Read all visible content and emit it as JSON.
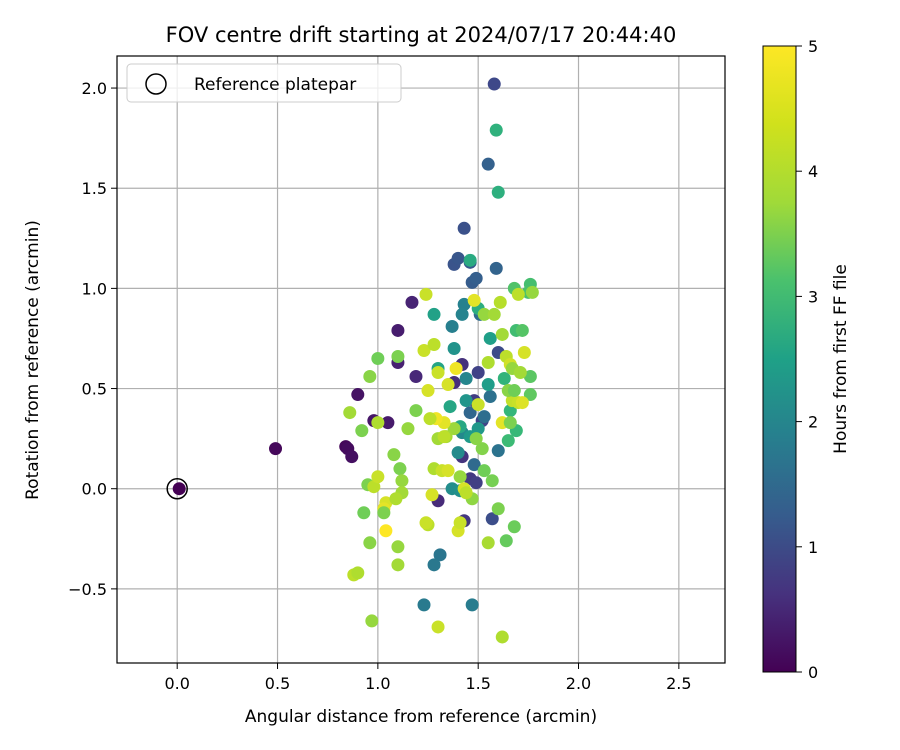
{
  "chart_data": {
    "type": "scatter",
    "title": "FOV centre drift starting at 2024/07/17 20:44:40",
    "xlabel": "Angular distance from reference (arcmin)",
    "ylabel": "Rotation from reference (arcmin)",
    "xlim": [
      -0.3,
      2.73
    ],
    "ylim": [
      -0.87,
      2.16
    ],
    "xticks": [
      0.0,
      0.5,
      1.0,
      1.5,
      2.0,
      2.5
    ],
    "xtick_labels": [
      "0.0",
      "0.5",
      "1.0",
      "1.5",
      "2.0",
      "2.5"
    ],
    "yticks": [
      -0.5,
      0.0,
      0.5,
      1.0,
      1.5,
      2.0
    ],
    "ytick_labels": [
      "−0.5",
      "0.0",
      "0.5",
      "1.0",
      "1.5",
      "2.0"
    ],
    "grid": true,
    "legend": {
      "placement": "upper-left",
      "entries": [
        "Reference platepar"
      ]
    },
    "reference_point": {
      "x": 0.0,
      "y": 0.0
    },
    "colorbar": {
      "label": "Hours from first FF file",
      "colormap": "viridis",
      "range": [
        0,
        5
      ],
      "ticks": [
        0,
        1,
        2,
        3,
        4,
        5
      ],
      "tick_labels": [
        "0",
        "1",
        "2",
        "3",
        "4",
        "5"
      ]
    },
    "points": [
      [
        0.01,
        0.0,
        0.0
      ],
      [
        0.49,
        0.2,
        0.1
      ],
      [
        0.84,
        0.21,
        0.1
      ],
      [
        0.85,
        0.2,
        0.15
      ],
      [
        0.87,
        0.16,
        0.2
      ],
      [
        0.9,
        0.47,
        0.25
      ],
      [
        0.98,
        0.34,
        0.3
      ],
      [
        1.05,
        0.33,
        0.35
      ],
      [
        1.1,
        0.79,
        0.4
      ],
      [
        1.1,
        0.63,
        0.45
      ],
      [
        1.17,
        0.93,
        0.5
      ],
      [
        1.19,
        0.56,
        0.55
      ],
      [
        1.3,
        -0.06,
        0.6
      ],
      [
        1.38,
        0.53,
        0.65
      ],
      [
        1.42,
        0.62,
        0.7
      ],
      [
        1.42,
        0.16,
        0.75
      ],
      [
        1.43,
        -0.16,
        0.8
      ],
      [
        1.46,
        0.05,
        0.85
      ],
      [
        1.48,
        0.44,
        0.9
      ],
      [
        1.49,
        0.03,
        0.95
      ],
      [
        1.5,
        0.58,
        1.0
      ],
      [
        1.52,
        0.34,
        1.05
      ],
      [
        1.58,
        2.02,
        1.1
      ],
      [
        1.6,
        0.68,
        1.15
      ],
      [
        1.57,
        -0.15,
        1.2
      ],
      [
        1.43,
        1.3,
        1.25
      ],
      [
        1.38,
        1.12,
        1.3
      ],
      [
        1.4,
        1.15,
        1.35
      ],
      [
        1.46,
        1.13,
        1.4
      ],
      [
        1.47,
        1.03,
        1.45
      ],
      [
        1.49,
        1.05,
        1.5
      ],
      [
        1.55,
        1.62,
        1.55
      ],
      [
        1.59,
        1.1,
        1.6
      ],
      [
        1.46,
        0.38,
        1.65
      ],
      [
        1.48,
        0.12,
        1.7
      ],
      [
        1.51,
        0.87,
        1.75
      ],
      [
        1.53,
        0.36,
        1.8
      ],
      [
        1.56,
        0.46,
        1.85
      ],
      [
        1.6,
        0.19,
        1.9
      ],
      [
        1.31,
        -0.33,
        1.95
      ],
      [
        1.28,
        -0.38,
        2.0
      ],
      [
        1.23,
        -0.58,
        2.05
      ],
      [
        1.47,
        -0.58,
        2.1
      ],
      [
        1.37,
        0.81,
        2.15
      ],
      [
        1.43,
        0.92,
        2.2
      ],
      [
        1.42,
        0.87,
        2.25
      ],
      [
        1.44,
        0.55,
        2.3
      ],
      [
        1.42,
        0.28,
        2.35
      ],
      [
        1.4,
        0.18,
        2.4
      ],
      [
        1.37,
        0.0,
        2.45
      ],
      [
        1.41,
        -0.01,
        2.5
      ],
      [
        1.38,
        0.7,
        2.55
      ],
      [
        1.44,
        0.44,
        2.6
      ],
      [
        1.5,
        0.3,
        2.65
      ],
      [
        1.46,
        0.26,
        2.7
      ],
      [
        1.55,
        0.52,
        2.75
      ],
      [
        1.56,
        0.75,
        2.8
      ],
      [
        1.28,
        0.87,
        2.85
      ],
      [
        1.3,
        0.6,
        2.9
      ],
      [
        1.36,
        0.41,
        2.95
      ],
      [
        1.41,
        0.31,
        3.0
      ],
      [
        1.46,
        1.14,
        3.05
      ],
      [
        1.5,
        0.9,
        3.1
      ],
      [
        1.6,
        1.48,
        3.15
      ],
      [
        1.59,
        1.79,
        3.2
      ],
      [
        1.63,
        0.55,
        3.25
      ],
      [
        1.66,
        0.39,
        3.3
      ],
      [
        1.69,
        0.29,
        3.35
      ],
      [
        1.65,
        0.24,
        3.4
      ],
      [
        1.69,
        0.79,
        3.45
      ],
      [
        1.76,
        1.02,
        3.5
      ],
      [
        1.75,
        0.98,
        3.55
      ],
      [
        1.68,
        1.0,
        3.6
      ],
      [
        1.72,
        0.79,
        3.65
      ],
      [
        1.76,
        0.56,
        3.7
      ],
      [
        1.76,
        0.47,
        3.75
      ],
      [
        1.64,
        -0.26,
        3.8
      ],
      [
        1.68,
        -0.19,
        3.85
      ],
      [
        1.53,
        0.09,
        3.9
      ],
      [
        1.57,
        0.04,
        3.95
      ],
      [
        1.6,
        -0.1,
        4.0
      ],
      [
        1.52,
        0.2,
        4.05
      ],
      [
        1.49,
        0.25,
        4.1
      ],
      [
        1.47,
        -0.05,
        4.15
      ],
      [
        1.41,
        0.06,
        4.2
      ],
      [
        1.38,
        0.3,
        4.25
      ],
      [
        1.34,
        0.26,
        4.3
      ],
      [
        1.55,
        -0.27,
        4.35
      ],
      [
        1.62,
        -0.74,
        4.4
      ],
      [
        1.61,
        0.93,
        4.45
      ],
      [
        1.64,
        0.66,
        4.5
      ],
      [
        1.67,
        0.44,
        4.55
      ],
      [
        1.7,
        0.43,
        4.6
      ],
      [
        1.66,
        0.62,
        4.65
      ],
      [
        1.73,
        0.68,
        4.7
      ],
      [
        1.72,
        0.43,
        4.75
      ],
      [
        1.62,
        0.33,
        4.8
      ],
      [
        1.0,
        0.65,
        3.9
      ],
      [
        1.1,
        0.66,
        4.0
      ],
      [
        0.96,
        0.56,
        4.1
      ],
      [
        1.19,
        0.39,
        4.0
      ],
      [
        1.15,
        0.3,
        4.2
      ],
      [
        0.86,
        0.38,
        4.3
      ],
      [
        0.92,
        0.29,
        4.0
      ],
      [
        1.0,
        0.33,
        4.4
      ],
      [
        0.95,
        0.02,
        4.0
      ],
      [
        0.98,
        0.01,
        4.5
      ],
      [
        1.0,
        0.06,
        4.6
      ],
      [
        1.04,
        -0.07,
        4.7
      ],
      [
        1.03,
        -0.1,
        4.8
      ],
      [
        1.08,
        0.17,
        4.1
      ],
      [
        1.11,
        0.1,
        4.0
      ],
      [
        1.12,
        0.04,
        4.2
      ],
      [
        1.12,
        -0.02,
        4.3
      ],
      [
        1.09,
        -0.05,
        4.4
      ],
      [
        0.93,
        -0.12,
        3.9
      ],
      [
        1.03,
        -0.12,
        4.0
      ],
      [
        0.96,
        -0.27,
        4.1
      ],
      [
        1.1,
        -0.29,
        4.2
      ],
      [
        1.1,
        -0.38,
        4.3
      ],
      [
        0.88,
        -0.43,
        4.5
      ],
      [
        0.9,
        -0.42,
        4.4
      ],
      [
        0.97,
        -0.66,
        4.2
      ],
      [
        1.04,
        -0.21,
        5.0
      ],
      [
        1.25,
        -0.18,
        4.5
      ],
      [
        1.24,
        -0.17,
        4.6
      ],
      [
        1.27,
        -0.03,
        4.7
      ],
      [
        1.3,
        0.25,
        4.3
      ],
      [
        1.28,
        0.1,
        4.4
      ],
      [
        1.33,
        0.26,
        4.5
      ],
      [
        1.32,
        0.09,
        4.6
      ],
      [
        1.35,
        0.09,
        4.7
      ],
      [
        1.33,
        0.33,
        4.8
      ],
      [
        1.29,
        0.35,
        4.9
      ],
      [
        1.26,
        0.35,
        4.5
      ],
      [
        1.23,
        0.69,
        4.6
      ],
      [
        1.25,
        0.49,
        4.7
      ],
      [
        1.28,
        0.72,
        4.5
      ],
      [
        1.3,
        0.58,
        4.6
      ],
      [
        1.35,
        0.52,
        4.7
      ],
      [
        1.39,
        0.6,
        4.9
      ],
      [
        1.24,
        0.97,
        4.6
      ],
      [
        1.3,
        -0.69,
        4.6
      ],
      [
        1.4,
        -0.21,
        4.7
      ],
      [
        1.41,
        -0.17,
        4.6
      ],
      [
        1.43,
        0.0,
        4.7
      ],
      [
        1.44,
        -0.02,
        4.5
      ],
      [
        1.48,
        0.94,
        4.8
      ],
      [
        1.5,
        0.42,
        4.6
      ],
      [
        1.53,
        0.87,
        4.2
      ],
      [
        1.55,
        0.63,
        4.4
      ],
      [
        1.58,
        0.87,
        4.3
      ],
      [
        1.62,
        0.77,
        4.3
      ],
      [
        1.65,
        0.49,
        4.1
      ],
      [
        1.66,
        0.33,
        4.0
      ],
      [
        1.67,
        0.6,
        4.2
      ],
      [
        1.71,
        0.58,
        4.3
      ],
      [
        1.68,
        0.49,
        3.9
      ],
      [
        1.7,
        0.97,
        4.5
      ],
      [
        1.77,
        0.98,
        4.2
      ]
    ]
  }
}
